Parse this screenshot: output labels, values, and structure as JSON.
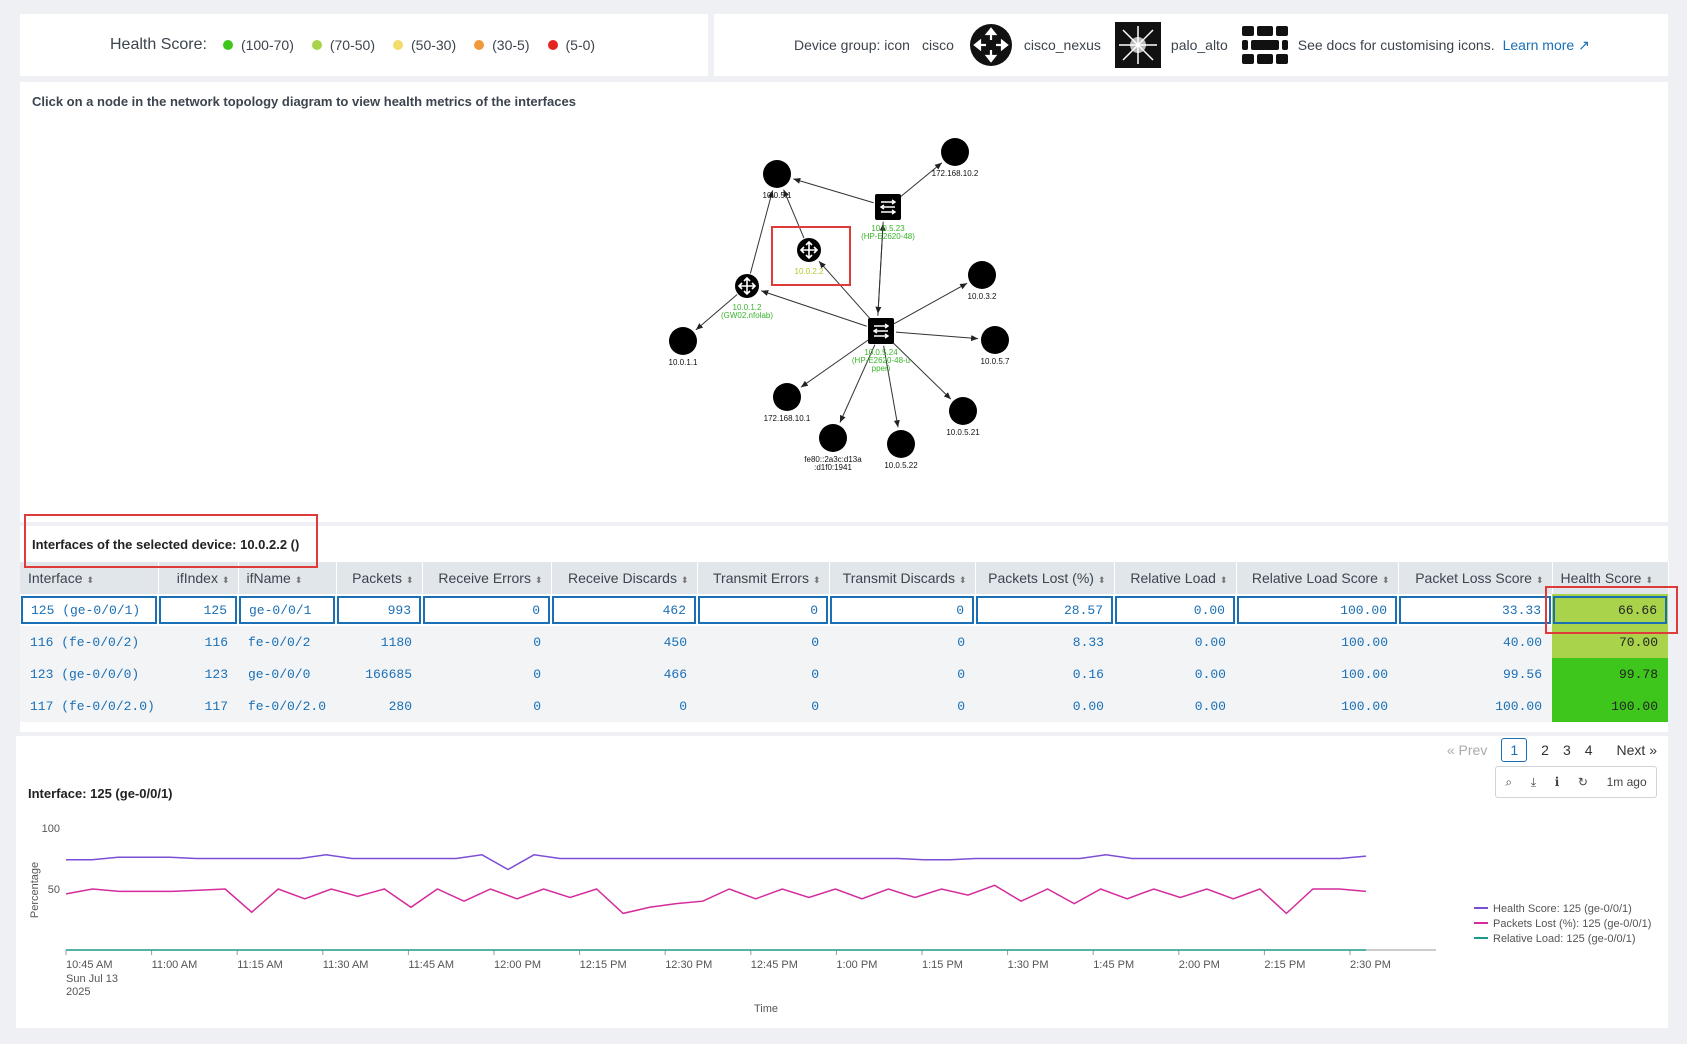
{
  "legend": {
    "title": "Health Score:",
    "items": [
      {
        "label": "(100-70)",
        "color": "#3ec61c"
      },
      {
        "label": "(70-50)",
        "color": "#a9d34a"
      },
      {
        "label": "(50-30)",
        "color": "#f2dc6b"
      },
      {
        "label": "(30-5)",
        "color": "#f0993a"
      },
      {
        "label": "(5-0)",
        "color": "#e5241d"
      }
    ]
  },
  "device_group": {
    "label": "Device group: icon",
    "groups": [
      "cisco",
      "cisco_nexus",
      "palo_alto"
    ],
    "docs_text": "See docs for customising icons.",
    "learn_more": "Learn more"
  },
  "topology": {
    "title": "Click on a node in the network topology diagram to view health metrics of the interfaces",
    "nodes": [
      {
        "id": "172.168.10.2",
        "kind": "host"
      },
      {
        "id": "10.0.5.1",
        "kind": "host"
      },
      {
        "id": "10.0.5.23",
        "kind": "switch",
        "sub": "(HP-E2620-48)"
      },
      {
        "id": "10.0.2.2",
        "kind": "router",
        "sub": ""
      },
      {
        "id": "10.0.1.2",
        "kind": "router",
        "sub": "(GW02.nfolab)"
      },
      {
        "id": "10.0.3.2",
        "kind": "host"
      },
      {
        "id": "10.0.1.1",
        "kind": "host"
      },
      {
        "id": "10.0.5.24",
        "kind": "switch",
        "sub": "(HP-E2620-48-u",
        "sub2": "pper)"
      },
      {
        "id": "10.0.5.7",
        "kind": "host"
      },
      {
        "id": "172.168.10.1",
        "kind": "host"
      },
      {
        "id": "10.0.5.21",
        "kind": "host"
      },
      {
        "id": "fe80::2a3c:d13a",
        "sub": ":d1f0:1941",
        "kind": "host"
      },
      {
        "id": "10.0.5.22",
        "kind": "host"
      }
    ]
  },
  "table": {
    "title": "Interfaces of the selected device: 10.0.2.2 ()",
    "columns": [
      "Interface",
      "ifIndex",
      "ifName",
      "Packets",
      "Receive Errors",
      "Receive Discards",
      "Transmit Errors",
      "Transmit Discards",
      "Packets Lost (%)",
      "Relative Load",
      "Relative Load Score",
      "Packet Loss Score",
      "Health Score"
    ],
    "rows": [
      [
        "125 (ge-0/0/1)",
        "125",
        "ge-0/0/1",
        "993",
        "0",
        "462",
        "0",
        "0",
        "28.57",
        "0.00",
        "100.00",
        "33.33",
        "66.66"
      ],
      [
        "116 (fe-0/0/2)",
        "116",
        "fe-0/0/2",
        "1180",
        "0",
        "450",
        "0",
        "0",
        "8.33",
        "0.00",
        "100.00",
        "40.00",
        "70.00"
      ],
      [
        "123 (ge-0/0/0)",
        "123",
        "ge-0/0/0",
        "166685",
        "0",
        "466",
        "0",
        "0",
        "0.16",
        "0.00",
        "100.00",
        "99.56",
        "99.78"
      ],
      [
        "117 (fe-0/0/2.0)",
        "117",
        "fe-0/0/2.0",
        "280",
        "0",
        "0",
        "0",
        "0",
        "0.00",
        "0.00",
        "100.00",
        "100.00",
        "100.00"
      ]
    ],
    "health_colors": [
      "#a9d34a",
      "#a9d34a",
      "#3ec61c",
      "#3ec61c"
    ]
  },
  "pager": {
    "prev": "« Prev",
    "pages": [
      "1",
      "2",
      "3",
      "4"
    ],
    "current": "1",
    "next": "Next »"
  },
  "toolbar": {
    "age": "1m ago"
  },
  "chart_data": {
    "type": "line",
    "title": "Interface: 125 (ge-0/0/1)",
    "xlabel": "Time",
    "ylabel": "Percentage",
    "y_ticks": [
      "100",
      "50"
    ],
    "ylim": [
      0,
      100
    ],
    "x_ticks": [
      "10:45 AM",
      "11:00 AM",
      "11:15 AM",
      "11:30 AM",
      "11:45 AM",
      "12:00 PM",
      "12:15 PM",
      "12:30 PM",
      "12:45 PM",
      "1:00 PM",
      "1:15 PM",
      "1:30 PM",
      "1:45 PM",
      "2:00 PM",
      "2:15 PM",
      "2:30 PM"
    ],
    "x_first_sub": [
      "Sun Jul 13",
      "2025"
    ],
    "series": [
      {
        "name": "Health Score: 125 (ge-0/0/1)",
        "color": "#7b4fd6",
        "values": [
          74,
          74,
          76,
          76,
          76,
          75,
          75,
          75,
          75,
          75,
          78,
          75,
          75,
          75,
          75,
          75,
          78,
          66,
          78,
          75,
          75,
          75,
          75,
          75,
          75,
          75,
          75,
          75,
          75,
          75,
          75,
          75,
          75,
          74,
          74,
          75,
          75,
          75,
          75,
          75,
          78,
          75,
          75,
          75,
          75,
          75,
          75,
          75,
          75,
          75,
          77
        ]
      },
      {
        "name": "Packets Lost (%): 125 (ge-0/0/1)",
        "color": "#d42c9c",
        "values": [
          46,
          50,
          48,
          48,
          48,
          49,
          50,
          31,
          50,
          42,
          50,
          44,
          50,
          35,
          50,
          40,
          50,
          42,
          50,
          43,
          50,
          30,
          35,
          38,
          40,
          50,
          42,
          50,
          43,
          50,
          42,
          50,
          43,
          50,
          45,
          53,
          40,
          50,
          38,
          50,
          42,
          50,
          43,
          50,
          42,
          50,
          30,
          50,
          50,
          48
        ]
      },
      {
        "name": "Relative Load: 125 (ge-0/0/1)",
        "color": "#1a9a8a",
        "values": [
          0,
          0,
          0,
          0,
          0,
          0,
          0,
          0,
          0,
          0,
          0,
          0,
          0,
          0,
          0,
          0,
          0,
          0,
          0,
          0,
          0,
          0,
          0,
          0,
          0,
          0,
          0,
          0,
          0,
          0,
          0,
          0,
          0,
          0,
          0,
          0,
          0,
          0,
          0,
          0,
          0,
          0,
          0,
          0,
          0,
          0,
          0,
          0,
          0,
          0
        ]
      }
    ]
  }
}
